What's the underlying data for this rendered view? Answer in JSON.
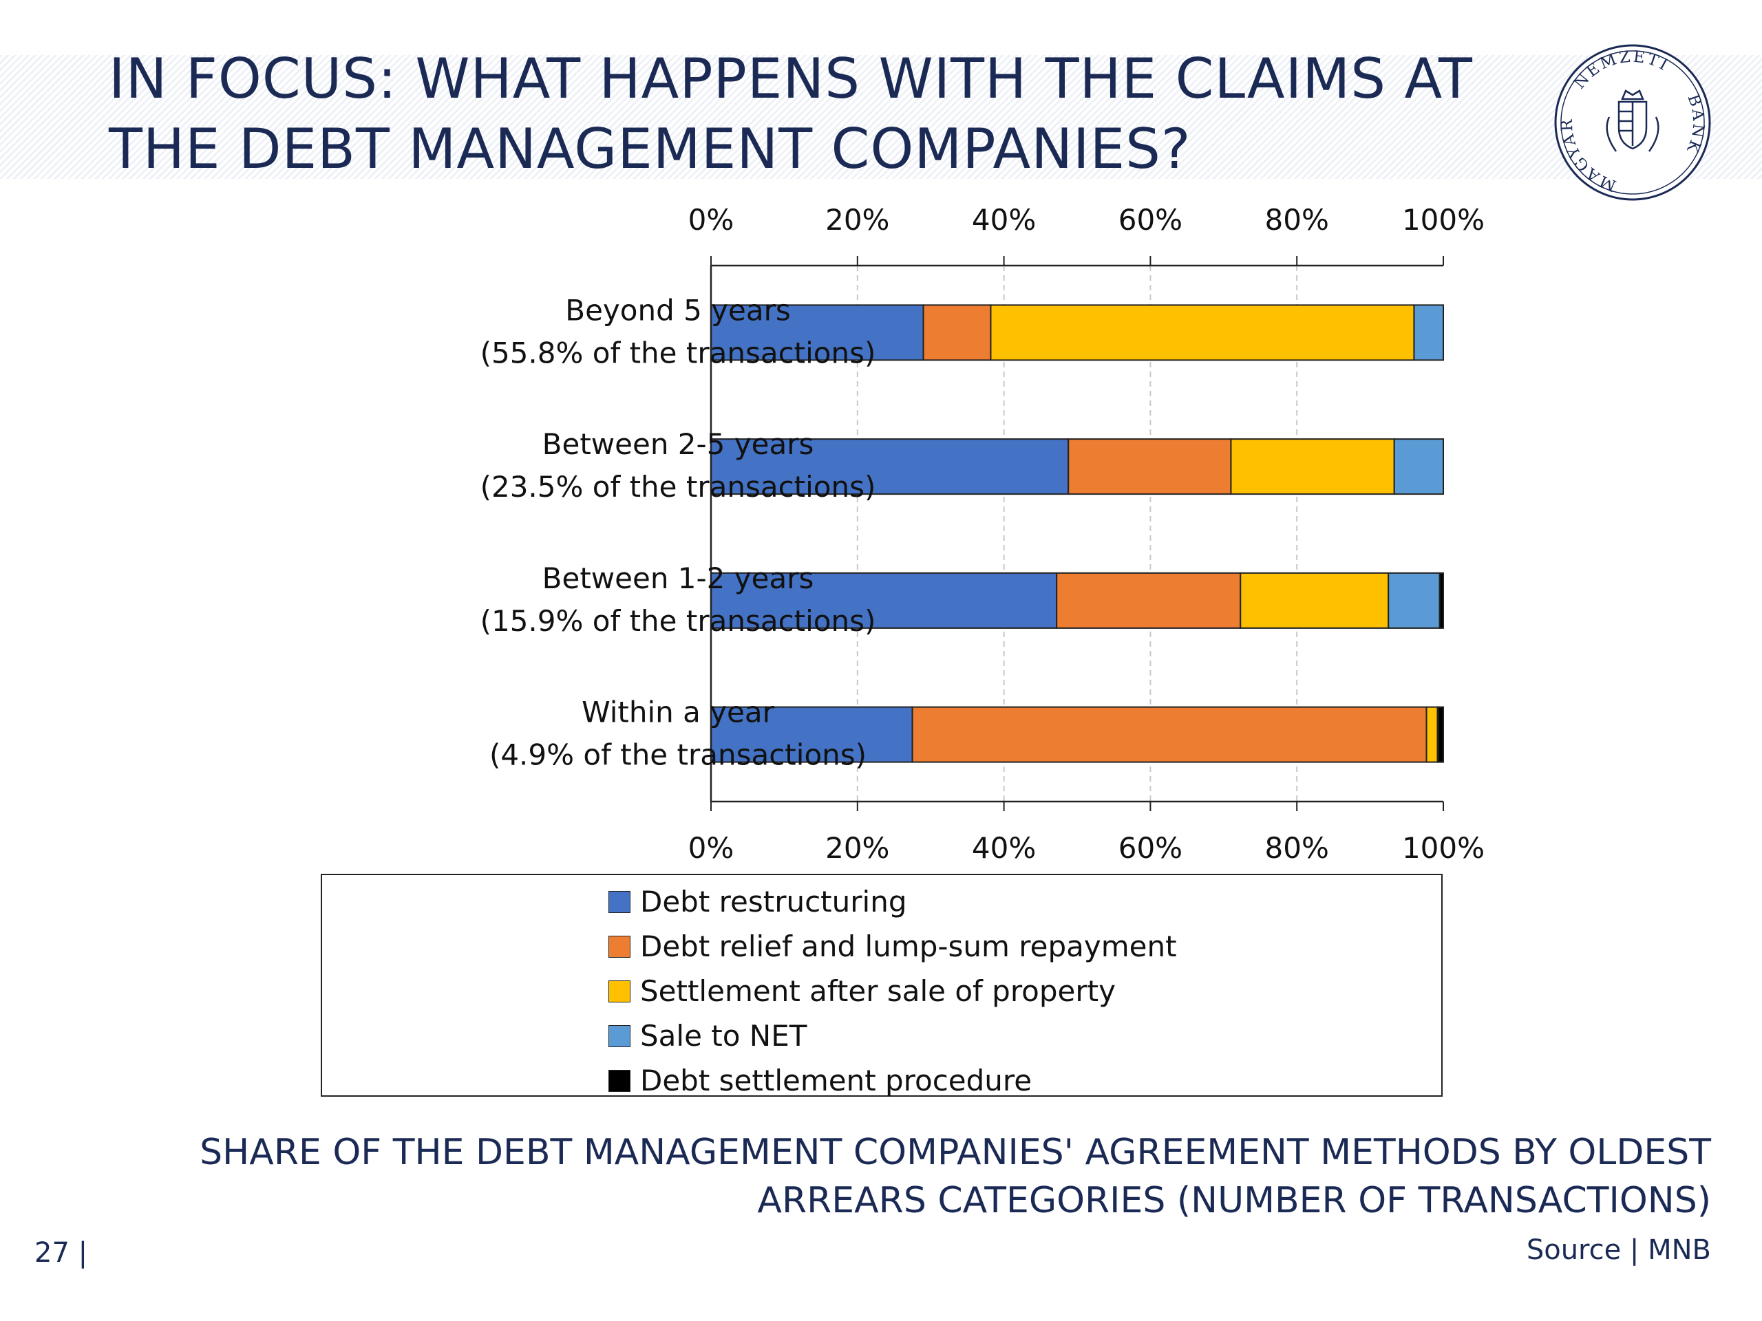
{
  "slide": {
    "title": "IN FOCUS: WHAT HAPPENS WITH THE CLAIMS AT THE DEBT MANAGEMENT COMPANIES?",
    "page_number": "27 |",
    "source": "Source | MNB",
    "logo": {
      "text_top": "NEMZETI",
      "text_left": "MAGYAR",
      "text_right": "BANK",
      "color": "#1b2a55"
    }
  },
  "chart_data": {
    "type": "bar",
    "orientation": "horizontal",
    "stacked": true,
    "title": "SHARE OF THE DEBT MANAGEMENT COMPANIES' AGREEMENT METHODS BY OLDEST ARREARS CATEGORIES (NUMBER OF TRANSACTIONS)",
    "categories": [
      [
        "Beyond 5 years",
        "(55.8% of the transactions)"
      ],
      [
        "Between 2-5 years",
        "(23.5% of the transactions)"
      ],
      [
        "Between 1-2 years",
        "(15.9% of the transactions)"
      ],
      [
        "Within a year",
        "(4.9% of the transactions)"
      ]
    ],
    "series": [
      {
        "name": "Debt restructuring",
        "color": "#4472c4",
        "values": [
          29,
          48.8,
          47.2,
          27.5
        ]
      },
      {
        "name": "Debt relief and lump-sum repayment",
        "color": "#ed7d31",
        "values": [
          9.2,
          22.2,
          25.1,
          70.2
        ]
      },
      {
        "name": "Settlement after sale of property",
        "color": "#ffc000",
        "values": [
          57.8,
          22.3,
          20.2,
          1.5
        ]
      },
      {
        "name": "Sale to NET",
        "color": "#5b9bd5",
        "values": [
          4.0,
          6.7,
          7.0,
          0.1
        ]
      },
      {
        "name": "Debt settlement procedure",
        "color": "#000000",
        "values": [
          0,
          0,
          0.5,
          0.7
        ]
      }
    ],
    "xlim": [
      0,
      100
    ],
    "x_ticks": [
      "0%",
      "20%",
      "40%",
      "60%",
      "80%",
      "100%"
    ],
    "grid": "vertical dashed",
    "legend_position": "bottom"
  }
}
